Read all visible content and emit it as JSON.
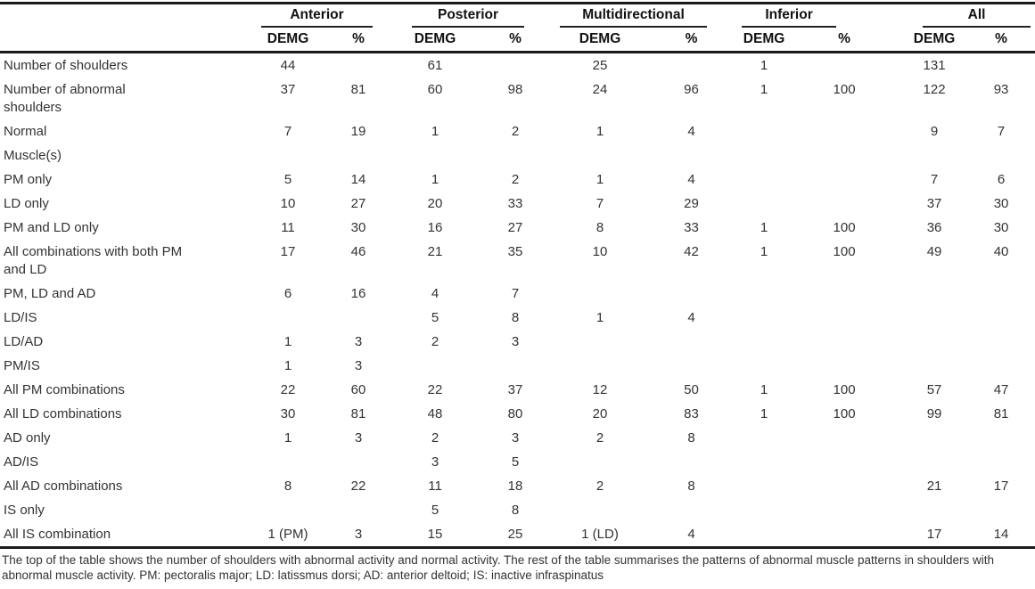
{
  "page": {
    "background_color": "#ffffff",
    "text_color": "#333333",
    "rule_color": "#1a1a1a"
  },
  "table": {
    "column_groups": [
      {
        "label": "Anterior"
      },
      {
        "label": "Posterior"
      },
      {
        "label": "Multidirectional"
      },
      {
        "label": "Inferior"
      },
      {
        "label": "All"
      }
    ],
    "sub_headers": [
      "DEMG",
      "%"
    ],
    "rows": [
      {
        "label": "Number of shoulders",
        "values": [
          "44",
          "",
          "61",
          "",
          "25",
          "",
          "1",
          "",
          "131",
          ""
        ]
      },
      {
        "label": "Number of abnormal\nshoulders",
        "values": [
          "37",
          "81",
          "60",
          "98",
          "24",
          "96",
          "1",
          "100",
          "122",
          "93"
        ]
      },
      {
        "label": "Normal",
        "values": [
          "7",
          "19",
          "1",
          "2",
          "1",
          "4",
          "",
          "",
          "9",
          "7"
        ]
      },
      {
        "label": "Muscle(s)",
        "values": [
          "",
          "",
          "",
          "",
          "",
          "",
          "",
          "",
          "",
          ""
        ]
      },
      {
        "label": "PM only",
        "values": [
          "5",
          "14",
          "1",
          "2",
          "1",
          "4",
          "",
          "",
          "7",
          "6"
        ]
      },
      {
        "label": "LD only",
        "values": [
          "10",
          "27",
          "20",
          "33",
          "7",
          "29",
          "",
          "",
          "37",
          "30"
        ]
      },
      {
        "label": "PM and LD only",
        "values": [
          "11",
          "30",
          "16",
          "27",
          "8",
          "33",
          "1",
          "100",
          "36",
          "30"
        ]
      },
      {
        "label": "All combinations with both PM\nand LD",
        "values": [
          "17",
          "46",
          "21",
          "35",
          "10",
          "42",
          "1",
          "100",
          "49",
          "40"
        ]
      },
      {
        "label": "PM, LD and AD",
        "values": [
          "6",
          "16",
          "4",
          "7",
          "",
          "",
          "",
          "",
          "",
          ""
        ]
      },
      {
        "label": "LD/IS",
        "values": [
          "",
          "",
          "5",
          "8",
          "1",
          "4",
          "",
          "",
          "",
          ""
        ]
      },
      {
        "label": "LD/AD",
        "values": [
          "1",
          "3",
          "2",
          "3",
          "",
          "",
          "",
          "",
          "",
          ""
        ]
      },
      {
        "label": "PM/IS",
        "values": [
          "1",
          "3",
          "",
          "",
          "",
          "",
          "",
          "",
          "",
          ""
        ]
      },
      {
        "label": "All PM combinations",
        "values": [
          "22",
          "60",
          "22",
          "37",
          "12",
          "50",
          "1",
          "100",
          "57",
          "47"
        ]
      },
      {
        "label": "All LD combinations",
        "values": [
          "30",
          "81",
          "48",
          "80",
          "20",
          "83",
          "1",
          "100",
          "99",
          "81"
        ]
      },
      {
        "label": "AD only",
        "values": [
          "1",
          "3",
          "2",
          "3",
          "2",
          "8",
          "",
          "",
          "",
          ""
        ]
      },
      {
        "label": "AD/IS",
        "values": [
          "",
          "",
          "3",
          "5",
          "",
          "",
          "",
          "",
          "",
          ""
        ]
      },
      {
        "label": "All AD combinations",
        "values": [
          "8",
          "22",
          "11",
          "18",
          "2",
          "8",
          "",
          "",
          "21",
          "17"
        ]
      },
      {
        "label": "IS only",
        "values": [
          "",
          "",
          "5",
          "8",
          "",
          "",
          "",
          "",
          "",
          ""
        ]
      },
      {
        "label": "All IS combination",
        "values": [
          "1 (PM)",
          "3",
          "15",
          "25",
          "1 (LD)",
          "4",
          "",
          "",
          "17",
          "14"
        ]
      }
    ],
    "footnote": "The top of the table shows the number of shoulders with abnormal activity and normal activity. The rest of the table summarises the patterns of abnormal muscle patterns in shoulders with abnormal muscle activity. PM: pectoralis major; LD: latissmus dorsi; AD: anterior deltoid; IS: inactive infraspinatus"
  }
}
